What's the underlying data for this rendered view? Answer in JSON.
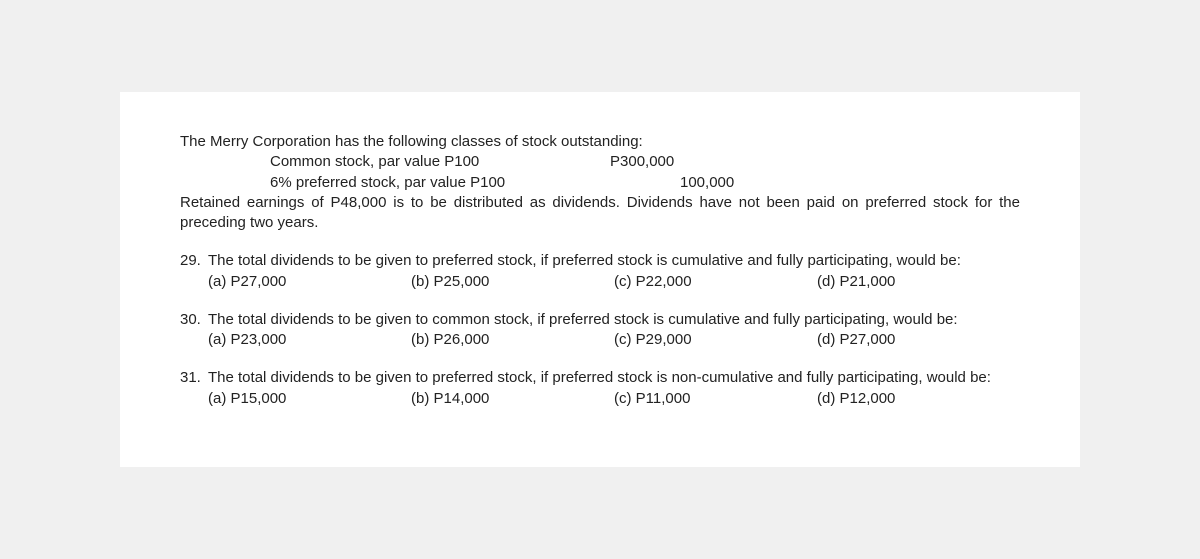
{
  "intro": {
    "line1": "The Merry Corporation has the following classes of stock outstanding:",
    "stock1_label": "Common stock, par value P100",
    "stock1_value": "P300,000",
    "stock2_label": "6% preferred stock, par value P100",
    "stock2_value": "100,000",
    "line2": "Retained earnings of P48,000 is to be distributed as dividends.  Dividends have not been paid on preferred stock for the preceding two years."
  },
  "q29": {
    "num": "29.",
    "text": "The total dividends to be given to preferred stock, if preferred stock is cumulative and fully participating, would be:",
    "a": "(a) P27,000",
    "b": "(b) P25,000",
    "c": "(c) P22,000",
    "d": "(d) P21,000"
  },
  "q30": {
    "num": "30.",
    "text": "The total dividends to be given to common stock, if preferred stock is cumulative and fully participating, would be:",
    "a": "(a) P23,000",
    "b": "(b) P26,000",
    "c": "(c) P29,000",
    "d": "(d) P27,000"
  },
  "q31": {
    "num": "31.",
    "text": "The total dividends to be given to preferred stock, if preferred stock is non-cumulative and fully participating, would be:",
    "a": "(a) P15,000",
    "b": "(b) P14,000",
    "c": "(c) P11,000",
    "d": "(d) P12,000"
  }
}
